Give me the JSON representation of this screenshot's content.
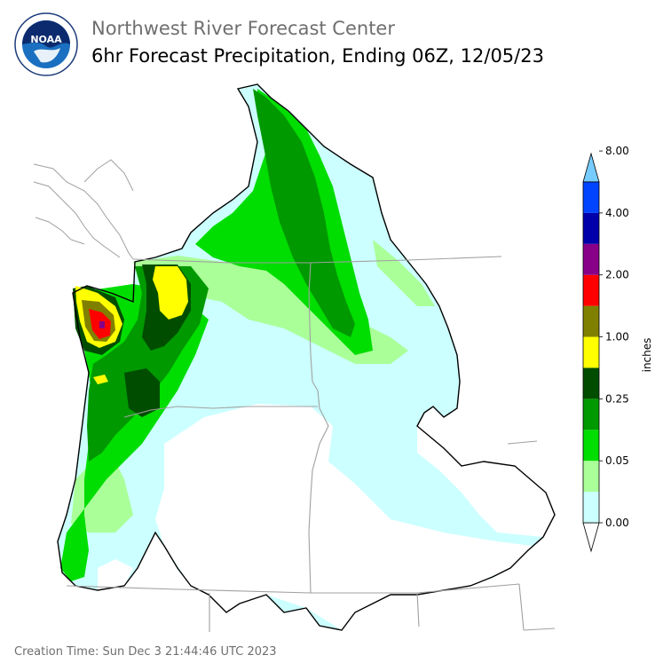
{
  "header": {
    "agency": "Northwest River Forecast Center",
    "product": "6hr Forecast Precipitation, Ending 06Z, 12/05/23",
    "logo_text": "NOAA",
    "logo_ring_text": "NATIONAL OCEANIC AND ATMOSPHERIC ADMINISTRATION • U.S. DEPARTMENT OF COMMERCE"
  },
  "legend": {
    "unit": "inches",
    "labels": [
      "0.00",
      "0.05",
      "0.25",
      "1.00",
      "2.00",
      "4.00",
      "8.00"
    ],
    "bins": [
      {
        "color": "#ffffff"
      },
      {
        "color": "#ccffff"
      },
      {
        "color": "#aaff99"
      },
      {
        "color": "#00dd00"
      },
      {
        "color": "#009900"
      },
      {
        "color": "#004d00"
      },
      {
        "color": "#ffff00"
      },
      {
        "color": "#808000"
      },
      {
        "color": "#ff0000"
      },
      {
        "color": "#880088"
      },
      {
        "color": "#0000aa"
      },
      {
        "color": "#0044ff"
      },
      {
        "color": "#77ccff"
      }
    ]
  },
  "footer": {
    "creation_time": "Creation Time: Sun Dec 3 21:44:46 UTC 2023"
  }
}
